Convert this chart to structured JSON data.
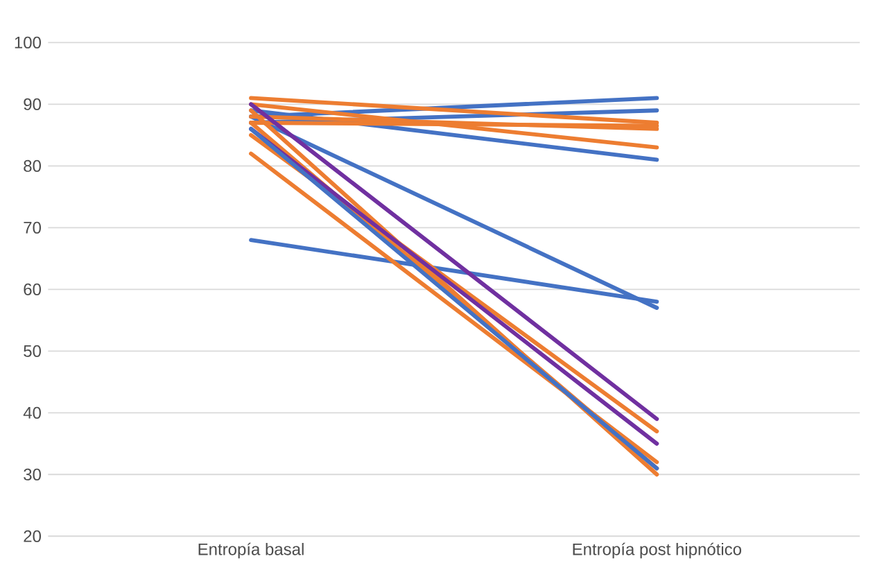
{
  "chart_data": {
    "type": "line",
    "categories": [
      "Entropía basal",
      "Entropía post hipnótico"
    ],
    "ylim": [
      20,
      100
    ],
    "yticks": [
      20,
      30,
      40,
      50,
      60,
      70,
      80,
      90,
      100
    ],
    "grid": "y",
    "legend": false,
    "marker": "none",
    "line_style": "solid",
    "series": [
      {
        "color": "#4472c4",
        "values": [
          88,
          91
        ]
      },
      {
        "color": "#4472c4",
        "values": [
          87,
          89
        ]
      },
      {
        "color": "#4472c4",
        "values": [
          89,
          81
        ]
      },
      {
        "color": "#4472c4",
        "values": [
          68,
          58
        ]
      },
      {
        "color": "#4472c4",
        "values": [
          88,
          57
        ]
      },
      {
        "color": "#ed7d31",
        "values": [
          91,
          87
        ]
      },
      {
        "color": "#ed7d31",
        "values": [
          88,
          86
        ]
      },
      {
        "color": "#ed7d31",
        "values": [
          87,
          86.5
        ]
      },
      {
        "color": "#ed7d31",
        "values": [
          90,
          83
        ]
      },
      {
        "color": "#ed7d31",
        "values": [
          85,
          37
        ]
      },
      {
        "color": "#ed7d31",
        "values": [
          82,
          32
        ]
      },
      {
        "color": "#ed7d31",
        "values": [
          87,
          31
        ]
      },
      {
        "color": "#ed7d31",
        "values": [
          89,
          30
        ]
      },
      {
        "color": "#7030a0",
        "values": [
          90,
          39
        ]
      },
      {
        "color": "#7030a0",
        "values": [
          86,
          35
        ]
      },
      {
        "color": "#4472c4",
        "values": [
          86,
          31
        ]
      }
    ]
  }
}
